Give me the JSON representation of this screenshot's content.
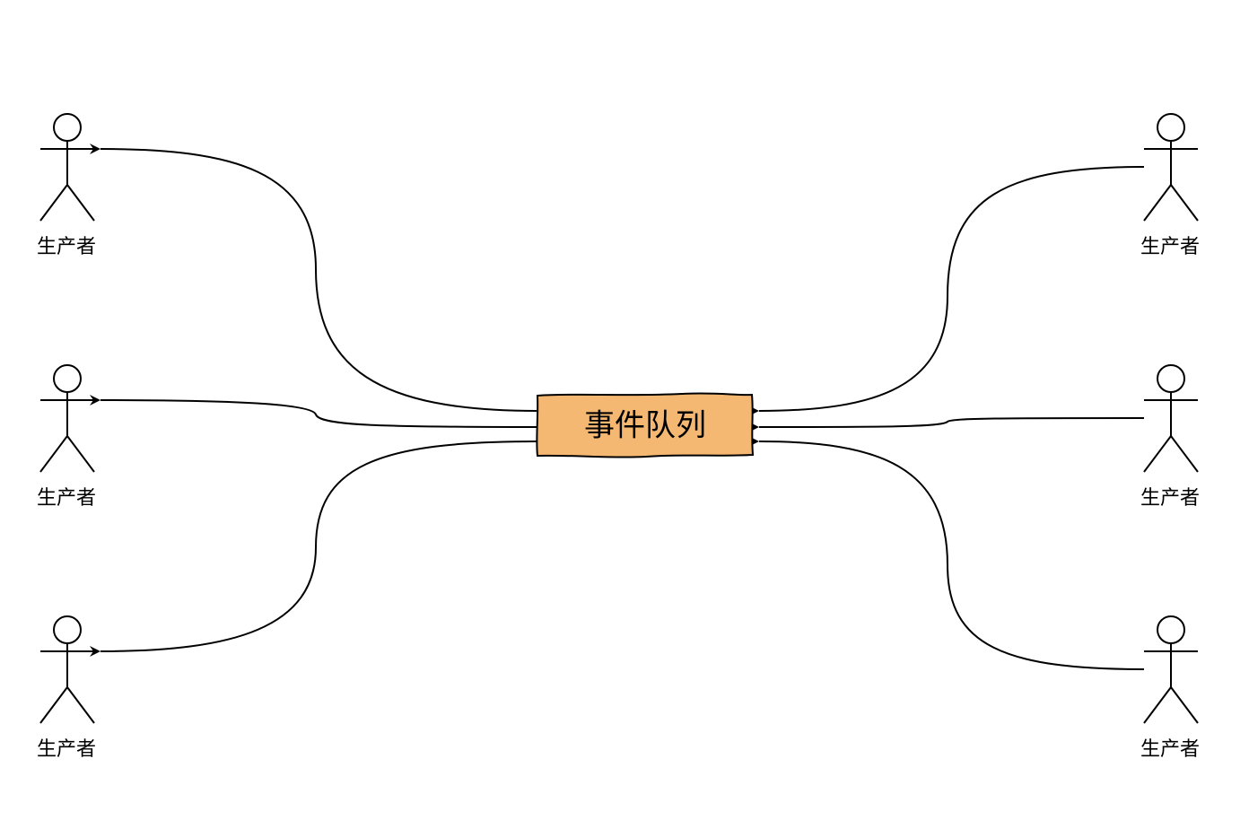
{
  "queue": {
    "label": "事件队列",
    "fill_color": "#f5b872"
  },
  "actors": {
    "left_top": {
      "label": "生产者"
    },
    "left_middle": {
      "label": "生产者"
    },
    "left_bottom": {
      "label": "生产者"
    },
    "right_top": {
      "label": "生产者"
    },
    "right_middle": {
      "label": "生产者"
    },
    "right_bottom": {
      "label": "生产者"
    }
  },
  "edges": [
    {
      "from": "queue",
      "to": "left_top"
    },
    {
      "from": "queue",
      "to": "left_middle"
    },
    {
      "from": "queue",
      "to": "left_bottom"
    },
    {
      "from": "right_top",
      "to": "queue"
    },
    {
      "from": "right_middle",
      "to": "queue"
    },
    {
      "from": "right_bottom",
      "to": "queue"
    }
  ],
  "colors": {
    "stroke": "#000000",
    "background": "#ffffff"
  }
}
